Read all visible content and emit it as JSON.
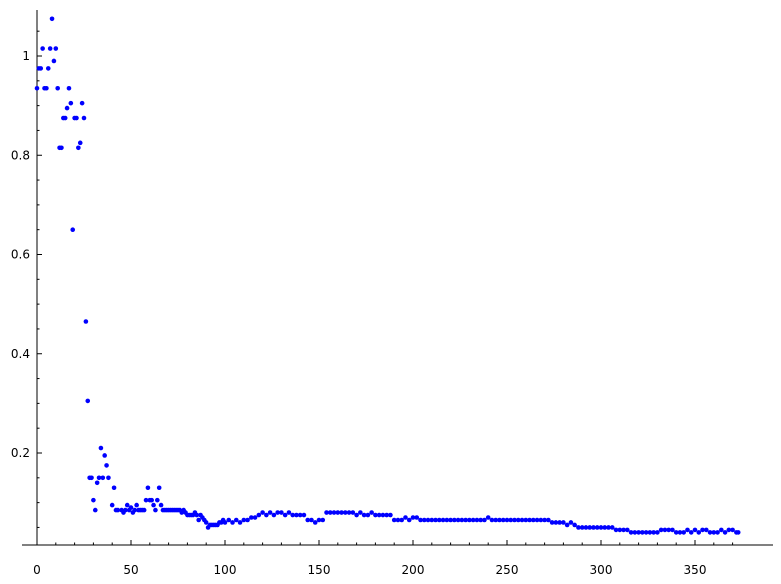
{
  "chart_data": {
    "type": "scatter",
    "title": "",
    "xlabel": "",
    "ylabel": "",
    "xlim": [
      0,
      380
    ],
    "ylim": [
      0.018,
      1.09
    ],
    "grid": false,
    "legend": "none",
    "series": [
      {
        "color": "#0000ff",
        "points": [
          [
            0,
            0.935
          ],
          [
            1,
            0.975
          ],
          [
            2,
            0.975
          ],
          [
            3,
            1.015
          ],
          [
            4,
            0.935
          ],
          [
            5,
            0.935
          ],
          [
            6,
            0.975
          ],
          [
            7,
            1.015
          ],
          [
            8,
            1.075
          ],
          [
            9,
            0.99
          ],
          [
            10,
            1.015
          ],
          [
            11,
            0.935
          ],
          [
            12,
            0.815
          ],
          [
            13,
            0.815
          ],
          [
            14,
            0.875
          ],
          [
            15,
            0.875
          ],
          [
            16,
            0.895
          ],
          [
            17,
            0.935
          ],
          [
            18,
            0.905
          ],
          [
            19,
            0.65
          ],
          [
            20,
            0.875
          ],
          [
            21,
            0.875
          ],
          [
            22,
            0.815
          ],
          [
            23,
            0.825
          ],
          [
            24,
            0.905
          ],
          [
            25,
            0.875
          ],
          [
            26,
            0.465
          ],
          [
            27,
            0.305
          ],
          [
            28,
            0.15
          ],
          [
            29,
            0.15
          ],
          [
            30,
            0.105
          ],
          [
            31,
            0.085
          ],
          [
            32,
            0.14
          ],
          [
            33,
            0.15
          ],
          [
            34,
            0.21
          ],
          [
            35,
            0.15
          ],
          [
            36,
            0.195
          ],
          [
            37,
            0.175
          ],
          [
            38,
            0.15
          ],
          [
            40,
            0.095
          ],
          [
            41,
            0.13
          ],
          [
            42,
            0.085
          ],
          [
            43,
            0.085
          ],
          [
            45,
            0.085
          ],
          [
            46,
            0.08
          ],
          [
            47,
            0.085
          ],
          [
            48,
            0.095
          ],
          [
            49,
            0.085
          ],
          [
            50,
            0.09
          ],
          [
            51,
            0.08
          ],
          [
            52,
            0.085
          ],
          [
            53,
            0.095
          ],
          [
            54,
            0.085
          ],
          [
            55,
            0.085
          ],
          [
            56,
            0.085
          ],
          [
            57,
            0.085
          ],
          [
            58,
            0.105
          ],
          [
            59,
            0.13
          ],
          [
            60,
            0.105
          ],
          [
            61,
            0.105
          ],
          [
            62,
            0.095
          ],
          [
            63,
            0.085
          ],
          [
            64,
            0.105
          ],
          [
            65,
            0.13
          ],
          [
            66,
            0.095
          ],
          [
            67,
            0.085
          ],
          [
            68,
            0.085
          ],
          [
            69,
            0.085
          ],
          [
            70,
            0.085
          ],
          [
            71,
            0.085
          ],
          [
            72,
            0.085
          ],
          [
            73,
            0.085
          ],
          [
            74,
            0.085
          ],
          [
            75,
            0.085
          ],
          [
            76,
            0.085
          ],
          [
            77,
            0.08
          ],
          [
            78,
            0.085
          ],
          [
            79,
            0.08
          ],
          [
            80,
            0.075
          ],
          [
            81,
            0.075
          ],
          [
            82,
            0.075
          ],
          [
            83,
            0.075
          ],
          [
            84,
            0.08
          ],
          [
            85,
            0.075
          ],
          [
            86,
            0.065
          ],
          [
            87,
            0.075
          ],
          [
            88,
            0.07
          ],
          [
            89,
            0.065
          ],
          [
            90,
            0.06
          ],
          [
            91,
            0.05
          ],
          [
            92,
            0.055
          ],
          [
            93,
            0.055
          ],
          [
            94,
            0.055
          ],
          [
            95,
            0.055
          ],
          [
            96,
            0.055
          ],
          [
            97,
            0.06
          ],
          [
            98,
            0.06
          ],
          [
            99,
            0.065
          ],
          [
            100,
            0.06
          ],
          [
            102,
            0.065
          ],
          [
            104,
            0.06
          ],
          [
            106,
            0.065
          ],
          [
            108,
            0.06
          ],
          [
            110,
            0.065
          ],
          [
            112,
            0.065
          ],
          [
            114,
            0.07
          ],
          [
            116,
            0.07
          ],
          [
            118,
            0.075
          ],
          [
            120,
            0.08
          ],
          [
            122,
            0.075
          ],
          [
            124,
            0.08
          ],
          [
            126,
            0.075
          ],
          [
            128,
            0.08
          ],
          [
            130,
            0.08
          ],
          [
            132,
            0.075
          ],
          [
            134,
            0.08
          ],
          [
            136,
            0.075
          ],
          [
            138,
            0.075
          ],
          [
            140,
            0.075
          ],
          [
            142,
            0.075
          ],
          [
            144,
            0.065
          ],
          [
            146,
            0.065
          ],
          [
            148,
            0.06
          ],
          [
            150,
            0.065
          ],
          [
            152,
            0.065
          ],
          [
            154,
            0.08
          ],
          [
            156,
            0.08
          ],
          [
            158,
            0.08
          ],
          [
            160,
            0.08
          ],
          [
            162,
            0.08
          ],
          [
            164,
            0.08
          ],
          [
            166,
            0.08
          ],
          [
            168,
            0.08
          ],
          [
            170,
            0.075
          ],
          [
            172,
            0.08
          ],
          [
            174,
            0.075
          ],
          [
            176,
            0.075
          ],
          [
            178,
            0.08
          ],
          [
            180,
            0.075
          ],
          [
            182,
            0.075
          ],
          [
            184,
            0.075
          ],
          [
            186,
            0.075
          ],
          [
            188,
            0.075
          ],
          [
            190,
            0.065
          ],
          [
            192,
            0.065
          ],
          [
            194,
            0.065
          ],
          [
            196,
            0.07
          ],
          [
            198,
            0.065
          ],
          [
            200,
            0.07
          ],
          [
            202,
            0.07
          ],
          [
            204,
            0.065
          ],
          [
            206,
            0.065
          ],
          [
            208,
            0.065
          ],
          [
            210,
            0.065
          ],
          [
            212,
            0.065
          ],
          [
            214,
            0.065
          ],
          [
            216,
            0.065
          ],
          [
            218,
            0.065
          ],
          [
            220,
            0.065
          ],
          [
            222,
            0.065
          ],
          [
            224,
            0.065
          ],
          [
            226,
            0.065
          ],
          [
            228,
            0.065
          ],
          [
            230,
            0.065
          ],
          [
            232,
            0.065
          ],
          [
            234,
            0.065
          ],
          [
            236,
            0.065
          ],
          [
            238,
            0.065
          ],
          [
            240,
            0.07
          ],
          [
            242,
            0.065
          ],
          [
            244,
            0.065
          ],
          [
            246,
            0.065
          ],
          [
            248,
            0.065
          ],
          [
            250,
            0.065
          ],
          [
            252,
            0.065
          ],
          [
            254,
            0.065
          ],
          [
            256,
            0.065
          ],
          [
            258,
            0.065
          ],
          [
            260,
            0.065
          ],
          [
            262,
            0.065
          ],
          [
            264,
            0.065
          ],
          [
            266,
            0.065
          ],
          [
            268,
            0.065
          ],
          [
            270,
            0.065
          ],
          [
            272,
            0.065
          ],
          [
            274,
            0.06
          ],
          [
            276,
            0.06
          ],
          [
            278,
            0.06
          ],
          [
            280,
            0.06
          ],
          [
            282,
            0.055
          ],
          [
            284,
            0.06
          ],
          [
            286,
            0.055
          ],
          [
            288,
            0.05
          ],
          [
            290,
            0.05
          ],
          [
            292,
            0.05
          ],
          [
            294,
            0.05
          ],
          [
            296,
            0.05
          ],
          [
            298,
            0.05
          ],
          [
            300,
            0.05
          ],
          [
            302,
            0.05
          ],
          [
            304,
            0.05
          ],
          [
            306,
            0.05
          ],
          [
            308,
            0.045
          ],
          [
            310,
            0.045
          ],
          [
            312,
            0.045
          ],
          [
            314,
            0.045
          ],
          [
            316,
            0.04
          ],
          [
            318,
            0.04
          ],
          [
            320,
            0.04
          ],
          [
            322,
            0.04
          ],
          [
            324,
            0.04
          ],
          [
            326,
            0.04
          ],
          [
            328,
            0.04
          ],
          [
            330,
            0.04
          ],
          [
            332,
            0.045
          ],
          [
            334,
            0.045
          ],
          [
            336,
            0.045
          ],
          [
            338,
            0.045
          ],
          [
            340,
            0.04
          ],
          [
            342,
            0.04
          ],
          [
            344,
            0.04
          ],
          [
            346,
            0.045
          ],
          [
            348,
            0.04
          ],
          [
            350,
            0.045
          ],
          [
            352,
            0.04
          ],
          [
            354,
            0.045
          ],
          [
            356,
            0.045
          ],
          [
            358,
            0.04
          ],
          [
            360,
            0.04
          ],
          [
            362,
            0.04
          ],
          [
            364,
            0.045
          ],
          [
            366,
            0.04
          ],
          [
            368,
            0.045
          ],
          [
            370,
            0.045
          ],
          [
            372,
            0.04
          ],
          [
            373,
            0.04
          ]
        ]
      }
    ],
    "x_ticks": [
      "0",
      "50",
      "100",
      "150",
      "200",
      "250",
      "300",
      "350"
    ],
    "y_ticks": [
      "0.2",
      "0.4",
      "0.6",
      "0.8",
      "1"
    ]
  }
}
